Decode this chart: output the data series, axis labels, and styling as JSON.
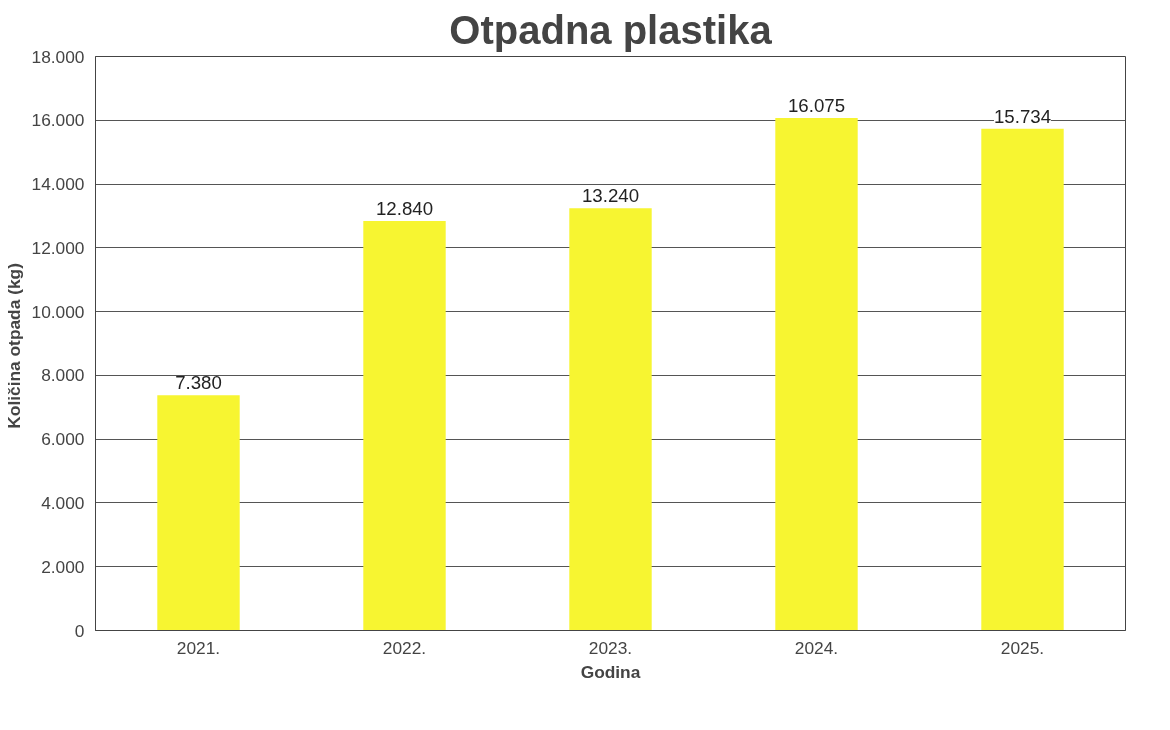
{
  "chart_data": {
    "type": "bar",
    "title": "Otpadna plastika",
    "xlabel": "Godina",
    "ylabel": "Količina  otpada (kg)",
    "categories": [
      "2021.",
      "2022.",
      "2023.",
      "2024.",
      "2025."
    ],
    "values": [
      7380,
      12840,
      13240,
      16075,
      15734
    ],
    "value_labels": [
      "7.380",
      "12.840",
      "13.240",
      "16.075",
      "15.734"
    ],
    "color": "#f7f531",
    "ylim": [
      0,
      18000
    ],
    "yticks": [
      0,
      {
        "value": 2000,
        "label": "2.000"
      },
      {
        "value": 4000,
        "label": "4.000"
      },
      {
        "value": 6000,
        "label": "6.000"
      },
      {
        "value": 8000,
        "label": "8.000"
      },
      {
        "value": 10000,
        "label": "10.000"
      },
      {
        "value": 12000,
        "label": "12.000"
      },
      {
        "value": 14000,
        "label": "14.000"
      },
      {
        "value": 16000,
        "label": "16.000"
      },
      {
        "value": 18000,
        "label": "18.000"
      }
    ],
    "grid": "y"
  }
}
